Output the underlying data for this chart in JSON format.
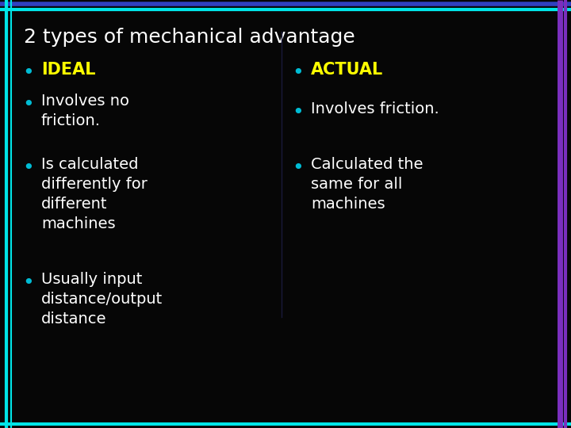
{
  "title": "2 types of mechanical advantage",
  "title_color": "#ffffff",
  "title_fontsize": 18,
  "background_color": "#060606",
  "bullet_color": "#00bcd4",
  "left_heading": "IDEAL",
  "left_heading_color": "#ffff00",
  "left_bullets": [
    "Involves no\nfriction.",
    "Is calculated\ndifferently for\ndifferent\nmachines",
    "Usually input\ndistance/output\ndistance"
  ],
  "left_bullet_color": "#ffffff",
  "right_heading": "ACTUAL",
  "right_heading_color": "#ffff00",
  "right_bullets": [
    "Involves friction.",
    "Calculated the\nsame for all\nmachines"
  ],
  "right_bullet_color": "#ffffff",
  "bullet_fontsize": 14,
  "heading_fontsize": 15,
  "border_cyan": "#00e5e8",
  "border_purple": "#7b2fbe",
  "border_blue": "#3040c0"
}
